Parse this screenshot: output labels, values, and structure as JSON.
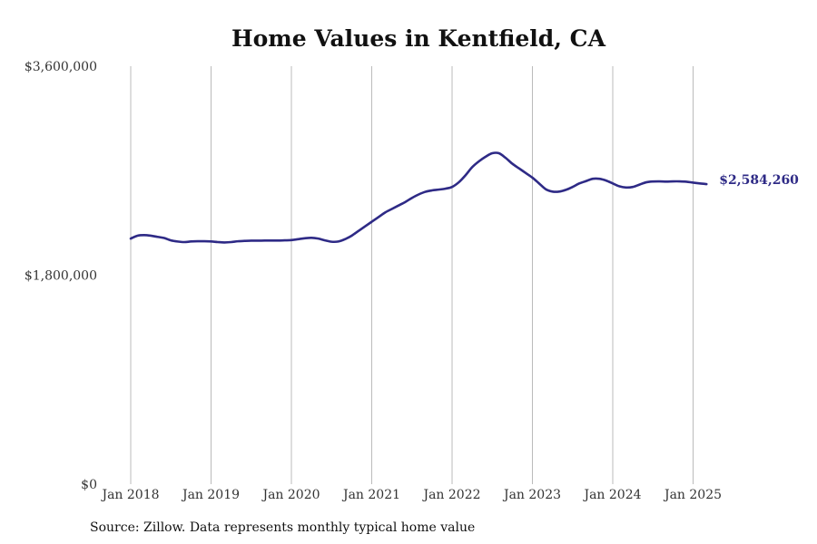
{
  "colors": {
    "line": "#2e2a86",
    "grid": "#bbbbbb",
    "text": "#333333"
  },
  "source_note": "Source: Zillow. Data represents monthly typical home value",
  "chart_data": {
    "type": "line",
    "title": "Home Values in Kentfield, CA",
    "xlabel": "",
    "ylabel": "",
    "ylim": [
      0,
      3600000
    ],
    "y_ticks": [
      {
        "value": 0,
        "label": "$0"
      },
      {
        "value": 1800000,
        "label": "$1,800,000"
      },
      {
        "value": 3600000,
        "label": "$3,600,000"
      }
    ],
    "x_ticks": [
      {
        "value": "2018-01",
        "label": "Jan 2018"
      },
      {
        "value": "2019-01",
        "label": "Jan 2019"
      },
      {
        "value": "2020-01",
        "label": "Jan 2020"
      },
      {
        "value": "2021-01",
        "label": "Jan 2021"
      },
      {
        "value": "2022-01",
        "label": "Jan 2022"
      },
      {
        "value": "2023-01",
        "label": "Jan 2023"
      },
      {
        "value": "2024-01",
        "label": "Jan 2024"
      },
      {
        "value": "2025-01",
        "label": "Jan 2025"
      }
    ],
    "grid": "vertical",
    "end_label": "$2,584,260",
    "series": [
      {
        "x": [
          "2018-01",
          "2018-02",
          "2018-03",
          "2018-04",
          "2018-05",
          "2018-06",
          "2018-07",
          "2018-08",
          "2018-09",
          "2018-10",
          "2018-11",
          "2018-12",
          "2019-01",
          "2019-02",
          "2019-03",
          "2019-04",
          "2019-05",
          "2019-06",
          "2019-07",
          "2019-08",
          "2019-09",
          "2019-10",
          "2019-11",
          "2019-12",
          "2020-01",
          "2020-02",
          "2020-03",
          "2020-04",
          "2020-05",
          "2020-06",
          "2020-07",
          "2020-08",
          "2020-09",
          "2020-10",
          "2020-11",
          "2020-12",
          "2021-01",
          "2021-02",
          "2021-03",
          "2021-04",
          "2021-05",
          "2021-06",
          "2021-07",
          "2021-08",
          "2021-09",
          "2021-10",
          "2021-11",
          "2021-12",
          "2022-01",
          "2022-02",
          "2022-03",
          "2022-04",
          "2022-05",
          "2022-06",
          "2022-07",
          "2022-08",
          "2022-09",
          "2022-10",
          "2022-11",
          "2022-12",
          "2023-01",
          "2023-02",
          "2023-03",
          "2023-04",
          "2023-05",
          "2023-06",
          "2023-07",
          "2023-08",
          "2023-09",
          "2023-10",
          "2023-11",
          "2023-12",
          "2024-01",
          "2024-02",
          "2024-03",
          "2024-04",
          "2024-05",
          "2024-06",
          "2024-07",
          "2024-08",
          "2024-09",
          "2024-10",
          "2024-11",
          "2024-12",
          "2025-01",
          "2025-02",
          "2025-03"
        ],
        "values": [
          2115000,
          2140000,
          2145000,
          2140000,
          2130000,
          2120000,
          2100000,
          2090000,
          2085000,
          2090000,
          2092000,
          2092000,
          2090000,
          2085000,
          2082000,
          2085000,
          2092000,
          2095000,
          2097000,
          2097000,
          2098000,
          2098000,
          2098000,
          2100000,
          2102000,
          2110000,
          2118000,
          2122000,
          2115000,
          2100000,
          2088000,
          2090000,
          2110000,
          2140000,
          2180000,
          2220000,
          2260000,
          2300000,
          2340000,
          2370000,
          2400000,
          2430000,
          2465000,
          2495000,
          2518000,
          2530000,
          2537000,
          2545000,
          2560000,
          2600000,
          2660000,
          2730000,
          2780000,
          2820000,
          2850000,
          2850000,
          2810000,
          2760000,
          2720000,
          2680000,
          2640000,
          2590000,
          2540000,
          2520000,
          2520000,
          2535000,
          2560000,
          2590000,
          2610000,
          2630000,
          2630000,
          2615000,
          2590000,
          2565000,
          2555000,
          2560000,
          2580000,
          2600000,
          2607000,
          2608000,
          2606000,
          2608000,
          2608000,
          2605000,
          2597000,
          2590000,
          2584260
        ]
      }
    ]
  }
}
